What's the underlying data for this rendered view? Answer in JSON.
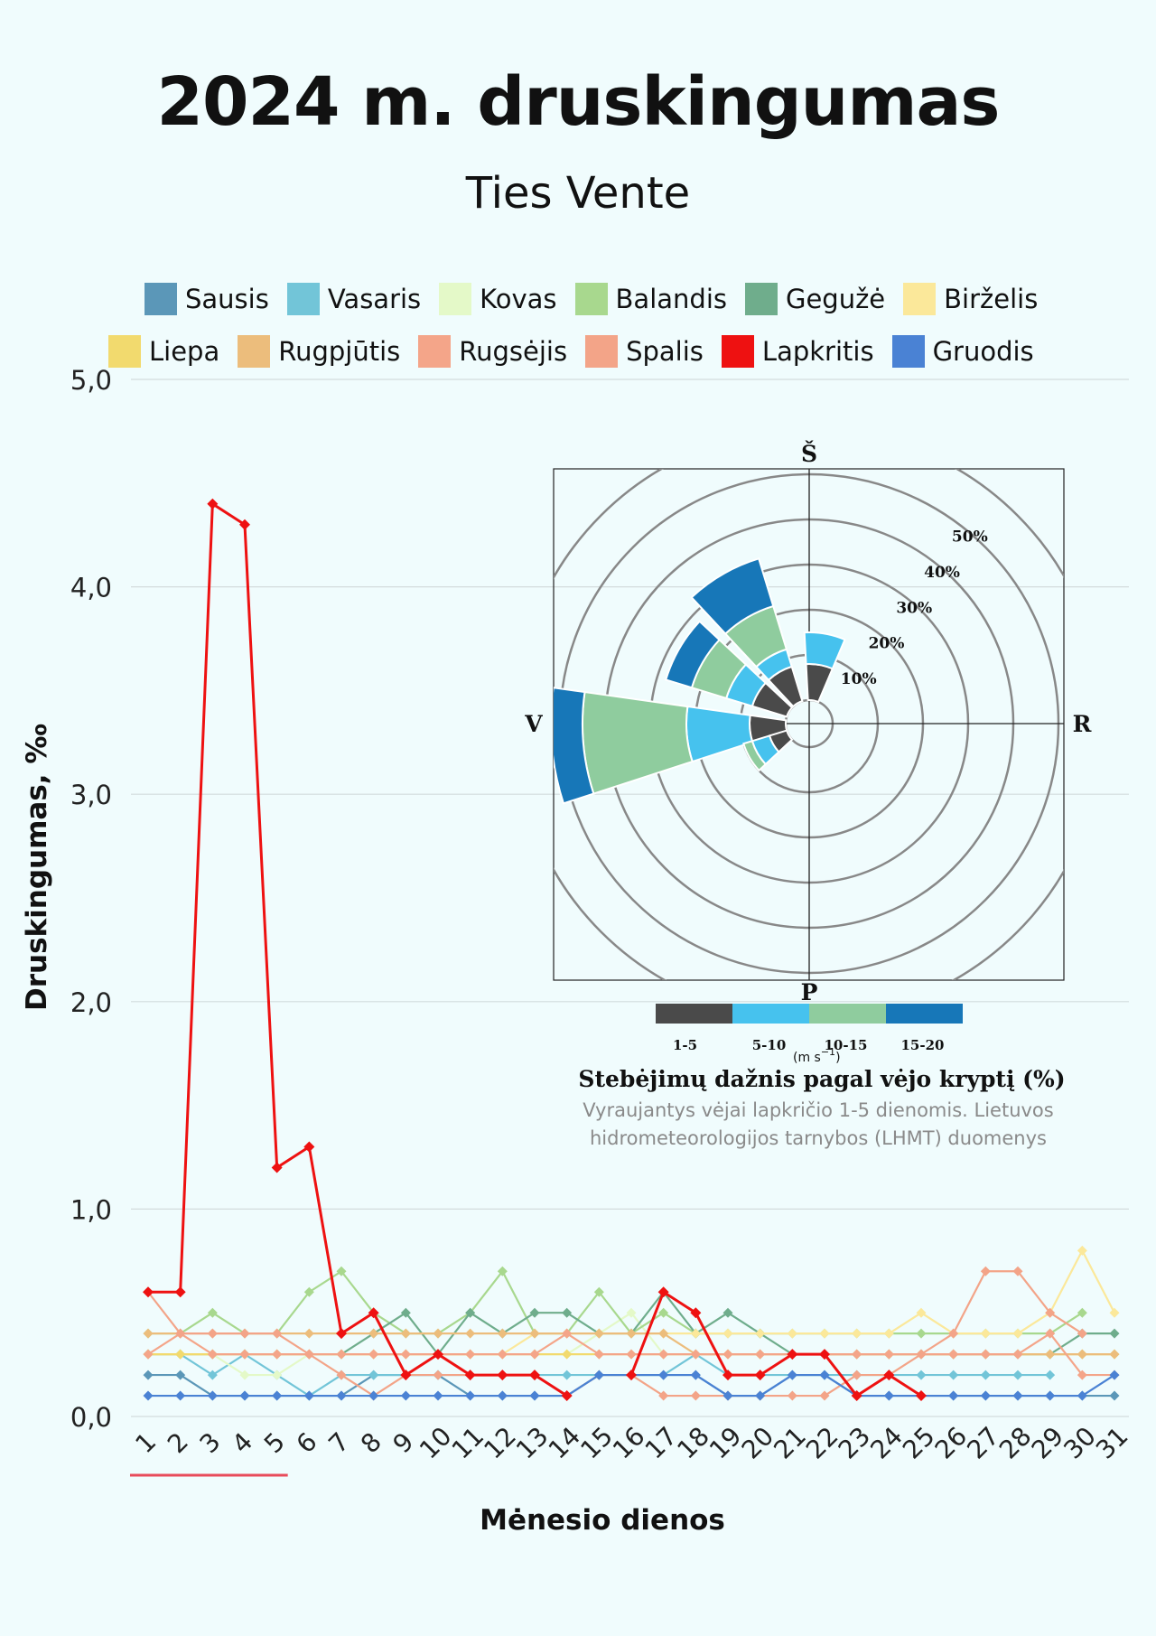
{
  "title": "2024 m. druskingumas",
  "subtitle": "Ties Vente",
  "chart_data": {
    "type": "line",
    "xlabel": "Mėnesio dienos",
    "ylabel": "Druskingumas, ‰",
    "ylim": [
      0,
      5
    ],
    "yticks": [
      "0,0",
      "1,0",
      "2,0",
      "3,0",
      "4,0",
      "5,0"
    ],
    "grid": true,
    "legend_position": "top",
    "x": [
      1,
      2,
      3,
      4,
      5,
      6,
      7,
      8,
      9,
      10,
      11,
      12,
      13,
      14,
      15,
      16,
      17,
      18,
      19,
      20,
      21,
      22,
      23,
      24,
      25,
      26,
      27,
      28,
      29,
      30,
      31
    ],
    "series": [
      {
        "name": "Sausis",
        "color": "#5b97b8",
        "values": [
          0.2,
          0.2,
          0.1,
          0.1,
          0.1,
          0.1,
          0.1,
          0.2,
          0.2,
          0.2,
          0.1,
          0.1,
          0.1,
          0.1,
          0.2,
          0.2,
          0.2,
          0.2,
          0.1,
          0.1,
          0.2,
          0.2,
          0.1,
          0.1,
          0.1,
          0.1,
          0.1,
          0.1,
          0.1,
          0.1,
          0.1
        ]
      },
      {
        "name": "Vasaris",
        "color": "#72c5d8",
        "values": [
          0.3,
          0.3,
          0.2,
          0.3,
          0.2,
          0.1,
          0.2,
          0.2,
          0.2,
          0.2,
          0.2,
          0.2,
          0.2,
          0.2,
          0.2,
          0.2,
          0.2,
          0.3,
          0.2,
          0.2,
          0.2,
          0.2,
          0.2,
          0.2,
          0.2,
          0.2,
          0.2,
          0.2,
          0.2,
          null,
          null
        ]
      },
      {
        "name": "Kovas",
        "color": "#e4f9c8",
        "values": [
          0.3,
          0.3,
          0.3,
          0.2,
          0.2,
          0.3,
          0.3,
          0.3,
          0.3,
          0.3,
          0.3,
          0.3,
          0.3,
          0.3,
          0.4,
          0.5,
          0.3,
          0.3,
          0.3,
          0.3,
          0.3,
          0.3,
          0.3,
          0.3,
          0.3,
          0.3,
          0.3,
          0.3,
          0.3,
          0.3,
          0.3
        ]
      },
      {
        "name": "Balandis",
        "color": "#a8d88e",
        "values": [
          0.4,
          0.4,
          0.5,
          0.4,
          0.4,
          0.6,
          0.7,
          0.5,
          0.4,
          0.4,
          0.5,
          0.7,
          0.4,
          0.4,
          0.6,
          0.4,
          0.5,
          0.4,
          0.4,
          0.4,
          0.4,
          0.4,
          0.4,
          0.4,
          0.4,
          0.4,
          0.4,
          0.4,
          0.4,
          0.5,
          null
        ]
      },
      {
        "name": "Gegužė",
        "color": "#6fad8c",
        "values": [
          0.3,
          0.3,
          0.3,
          0.3,
          0.3,
          0.3,
          0.3,
          0.4,
          0.5,
          0.3,
          0.5,
          0.4,
          0.5,
          0.5,
          0.4,
          0.4,
          0.6,
          0.4,
          0.5,
          0.4,
          0.3,
          0.3,
          0.3,
          0.3,
          0.3,
          0.3,
          0.3,
          0.3,
          0.3,
          0.4,
          0.4
        ]
      },
      {
        "name": "Birželis",
        "color": "#fbe89a",
        "values": [
          0.3,
          0.3,
          0.3,
          0.3,
          0.3,
          0.3,
          0.3,
          0.3,
          0.3,
          0.3,
          0.3,
          0.3,
          0.4,
          0.4,
          0.4,
          0.4,
          0.4,
          0.4,
          0.4,
          0.4,
          0.4,
          0.4,
          0.4,
          0.4,
          0.5,
          0.4,
          0.4,
          0.4,
          0.5,
          0.8,
          0.5
        ]
      },
      {
        "name": "Liepa",
        "color": "#f2da6e",
        "values": [
          0.3,
          0.3,
          0.3,
          0.3,
          0.3,
          0.3,
          0.3,
          0.3,
          0.3,
          0.3,
          0.3,
          0.3,
          0.3,
          0.3,
          0.3,
          0.3,
          0.3,
          0.3,
          0.3,
          0.3,
          0.3,
          0.3,
          0.3,
          0.3,
          0.3,
          0.3,
          0.3,
          0.3,
          0.3,
          0.3,
          0.3
        ]
      },
      {
        "name": "Rugpjūtis",
        "color": "#ecbd7c",
        "values": [
          0.4,
          0.4,
          0.4,
          0.4,
          0.4,
          0.4,
          0.4,
          0.4,
          0.4,
          0.4,
          0.4,
          0.4,
          0.4,
          0.4,
          0.4,
          0.4,
          0.4,
          0.3,
          0.3,
          0.3,
          0.3,
          0.3,
          0.3,
          0.3,
          0.3,
          0.3,
          0.3,
          0.3,
          0.3,
          0.3,
          0.3
        ]
      },
      {
        "name": "Rugsėjis",
        "color": "#f4a589",
        "values": [
          0.3,
          0.4,
          0.3,
          0.3,
          0.3,
          0.3,
          0.3,
          0.3,
          0.3,
          0.3,
          0.3,
          0.3,
          0.3,
          0.4,
          0.3,
          0.3,
          0.3,
          0.3,
          0.3,
          0.3,
          0.3,
          0.3,
          0.3,
          0.3,
          0.3,
          0.3,
          0.3,
          0.3,
          0.4,
          0.2,
          0.2
        ]
      },
      {
        "name": "Spalis",
        "color": "#f3a488",
        "values": [
          0.6,
          0.4,
          0.4,
          0.4,
          0.4,
          0.3,
          0.2,
          0.1,
          0.2,
          0.2,
          0.2,
          0.2,
          0.2,
          0.1,
          0.2,
          0.2,
          0.1,
          0.1,
          0.1,
          0.1,
          0.1,
          0.1,
          0.2,
          0.2,
          0.3,
          0.4,
          0.7,
          0.7,
          0.5,
          0.4,
          null
        ]
      },
      {
        "name": "Lapkritis",
        "color": "#ee1111",
        "values": [
          0.6,
          0.6,
          4.4,
          4.3,
          1.2,
          1.3,
          0.4,
          0.5,
          0.2,
          0.3,
          0.2,
          0.2,
          0.2,
          0.1,
          null,
          0.2,
          0.6,
          0.5,
          0.2,
          0.2,
          0.3,
          0.3,
          0.1,
          0.2,
          0.1,
          null,
          null,
          null,
          null,
          null,
          null
        ]
      },
      {
        "name": "Gruodis",
        "color": "#4a82d4",
        "values": [
          0.1,
          0.1,
          0.1,
          0.1,
          0.1,
          0.1,
          0.1,
          0.1,
          0.1,
          0.1,
          0.1,
          0.1,
          0.1,
          0.1,
          0.2,
          0.2,
          0.2,
          0.2,
          0.1,
          0.1,
          0.2,
          0.2,
          0.1,
          0.1,
          0.1,
          0.1,
          0.1,
          0.1,
          0.1,
          0.1,
          0.2
        ]
      }
    ],
    "highlight_range_days": [
      1,
      5
    ],
    "highlight_color": "#e84b5b"
  },
  "wind_rose": {
    "directions": {
      "north": "Š",
      "east": "R",
      "south": "P",
      "west": "V"
    },
    "ring_labels": [
      "10%",
      "20%",
      "30%",
      "40%",
      "50%"
    ],
    "ring_values": [
      10,
      20,
      30,
      40,
      50
    ],
    "speed_bins": [
      "1-5",
      "5-10",
      "10-15",
      "15-20"
    ],
    "speed_colors": [
      "#4a4a4a",
      "#46c2ee",
      "#8fcc9e",
      "#1777b8"
    ],
    "unit_label": "(m s",
    "unit_exponent": "−1",
    "unit_close": ")",
    "title": "Stebėjimų dažnis pagal vėjo kryptį (%)",
    "caption_line1": "Vyraujantys vėjai lapkričio 1-5 dienomis. Lietuvos",
    "caption_line2": "hidrometeorologijos tarnybos (LHMT) duomenys",
    "sectors": [
      {
        "direction_deg": 10,
        "cumulative_pct": [
          8,
          15,
          15,
          15
        ]
      },
      {
        "direction_deg": 330,
        "cumulative_pct": [
          8,
          12,
          22,
          33
        ]
      },
      {
        "direction_deg": 300,
        "cumulative_pct": [
          8,
          14,
          22,
          28
        ]
      },
      {
        "direction_deg": 265,
        "cumulative_pct": [
          8,
          22,
          45,
          52
        ]
      },
      {
        "direction_deg": 240,
        "cumulative_pct": [
          4,
          8,
          10,
          10
        ]
      }
    ]
  }
}
